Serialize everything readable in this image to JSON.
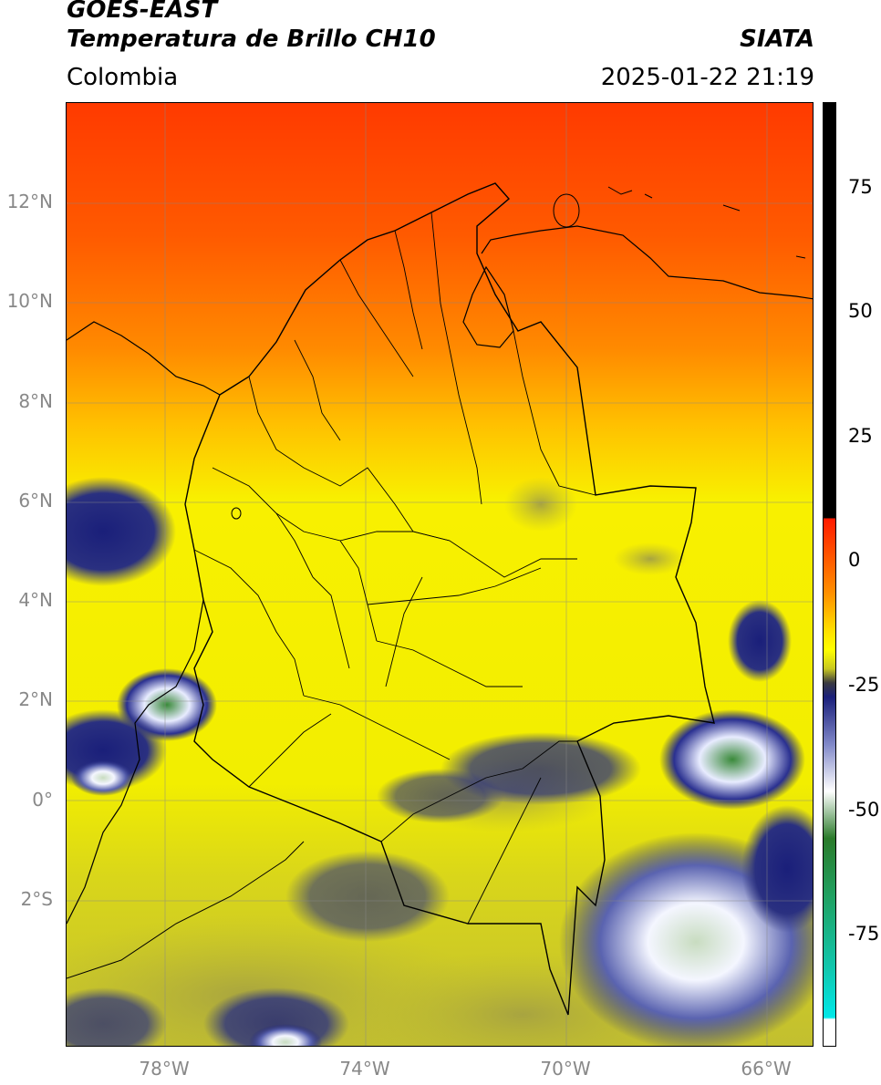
{
  "header": {
    "satellite": "GOES-EAST",
    "product": "Temperatura de Brillo CH10",
    "region": "Colombia",
    "organization": "SIATA",
    "timestamp": "2025-01-22 21:19"
  },
  "map": {
    "lat_labels": [
      "12°N",
      "10°N",
      "8°N",
      "6°N",
      "4°N",
      "2°N",
      "0°",
      "2°S"
    ],
    "lon_labels": [
      "78°W",
      "74°W",
      "70°W",
      "66°W"
    ],
    "colors": {
      "warm_red": "#ff3a00",
      "orange": "#ff8a00",
      "yellow": "#f8f000",
      "olive": "#c8c428",
      "navy": "#1a1f7a",
      "white": "#f4f6ff",
      "green": "#3a8a3a",
      "cyan": "#00d8d8"
    }
  },
  "colorbar": {
    "labels": [
      "75",
      "50",
      "25",
      "0",
      "-25",
      "-50",
      "-75"
    ]
  }
}
